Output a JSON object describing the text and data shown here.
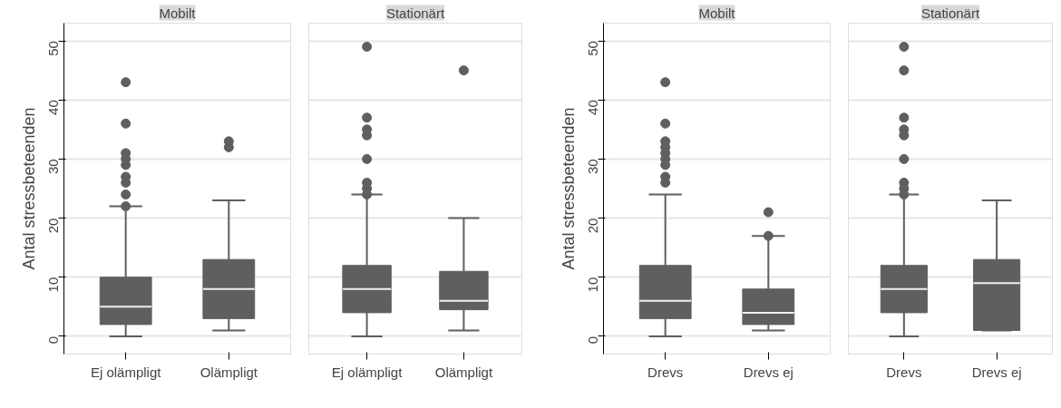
{
  "chart_data": [
    {
      "type": "box",
      "title": "Mobilt",
      "ylabel": "Antal stressbeteenden",
      "categories": [
        "Ej olämpligt",
        "Olämpligt"
      ],
      "color": "#5f5f5f",
      "ylim": [
        -3,
        53
      ],
      "yticks": [
        0,
        10,
        20,
        30,
        40,
        50
      ],
      "grid": "y",
      "boxes": [
        {
          "low": 0,
          "q1": 2,
          "median": 5,
          "q3": 10,
          "high": 22,
          "outliers": [
            22,
            24,
            26,
            27,
            29,
            30,
            31,
            36,
            43
          ]
        },
        {
          "low": 1,
          "q1": 3,
          "median": 8,
          "q3": 13,
          "high": 23,
          "outliers": [
            32,
            33
          ]
        }
      ]
    },
    {
      "type": "box",
      "title": "Stationärt",
      "categories": [
        "Ej olämpligt",
        "Olämpligt"
      ],
      "color": "#5f5f5f",
      "ylim": [
        -3,
        53
      ],
      "yticks": [
        0,
        10,
        20,
        30,
        40,
        50
      ],
      "grid": "y",
      "tick_labels": "x",
      "boxes": [
        {
          "low": 0,
          "q1": 4,
          "median": 8,
          "q3": 12,
          "high": 24,
          "outliers": [
            24,
            25,
            26,
            30,
            34,
            35,
            37,
            49
          ]
        },
        {
          "low": 1,
          "q1": 4.5,
          "median": 6,
          "q3": 11,
          "high": 20,
          "outliers": [
            45
          ]
        }
      ]
    },
    {
      "type": "box",
      "title": "Mobilt",
      "ylabel": "Antal stressbeteenden",
      "categories": [
        "Drevs",
        "Drevs ej"
      ],
      "color": "#5f5f5f",
      "ylim": [
        -3,
        53
      ],
      "yticks": [
        0,
        10,
        20,
        30,
        40,
        50
      ],
      "grid": "y",
      "boxes": [
        {
          "low": 0,
          "q1": 3,
          "median": 6,
          "q3": 12,
          "high": 24,
          "outliers": [
            26,
            27,
            29,
            30,
            31,
            32,
            33,
            36,
            43
          ]
        },
        {
          "low": 1,
          "q1": 2,
          "median": 4,
          "q3": 8,
          "high": 17,
          "outliers": [
            17,
            21
          ]
        }
      ]
    },
    {
      "type": "box",
      "title": "Stationärt",
      "categories": [
        "Drevs",
        "Drevs ej"
      ],
      "color": "#5f5f5f",
      "ylim": [
        -3,
        53
      ],
      "yticks": [
        0,
        10,
        20,
        30,
        40,
        50
      ],
      "grid": "y",
      "tick_labels": "x",
      "boxes": [
        {
          "low": 0,
          "q1": 4,
          "median": 8,
          "q3": 12,
          "high": 24,
          "outliers": [
            24,
            25,
            26,
            30,
            34,
            35,
            37,
            45,
            49
          ]
        },
        {
          "low": 1,
          "q1": 1,
          "median": 9,
          "q3": 13,
          "high": 23
        }
      ]
    }
  ]
}
